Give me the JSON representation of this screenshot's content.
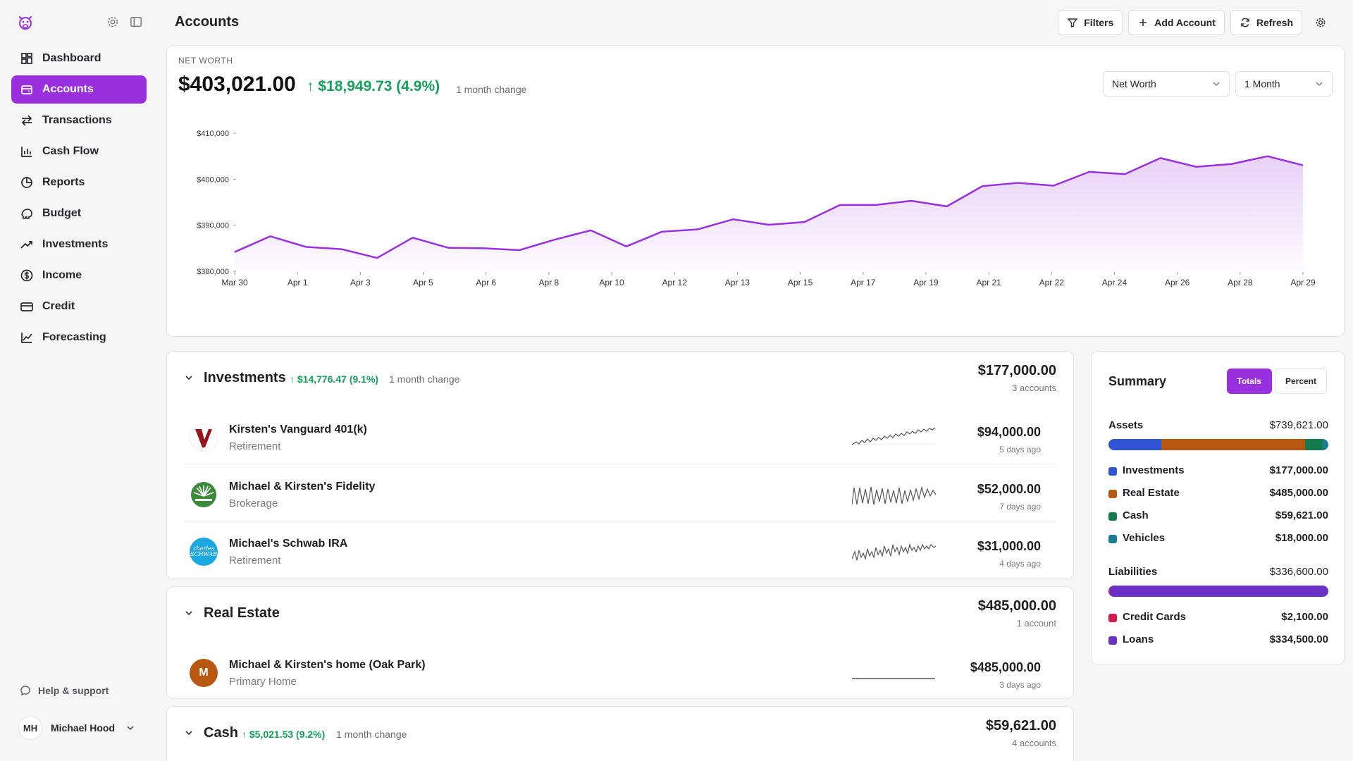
{
  "sidebar": {
    "items": [
      {
        "label": "Dashboard",
        "icon": "dashboard-icon",
        "active": false
      },
      {
        "label": "Accounts",
        "icon": "accounts-icon",
        "active": true
      },
      {
        "label": "Transactions",
        "icon": "transactions-icon",
        "active": false
      },
      {
        "label": "Cash Flow",
        "icon": "cash-flow-icon",
        "active": false
      },
      {
        "label": "Reports",
        "icon": "reports-icon",
        "active": false
      },
      {
        "label": "Budget",
        "icon": "budget-icon",
        "active": false
      },
      {
        "label": "Investments",
        "icon": "investments-icon",
        "active": false
      },
      {
        "label": "Income",
        "icon": "income-icon",
        "active": false
      },
      {
        "label": "Credit",
        "icon": "credit-icon",
        "active": false
      },
      {
        "label": "Forecasting",
        "icon": "forecasting-icon",
        "active": false
      }
    ],
    "help_label": "Help & support",
    "user": {
      "initials": "MH",
      "name": "Michael Hood"
    }
  },
  "header": {
    "title": "Accounts",
    "buttons": {
      "filters": "Filters",
      "add_account": "Add Account",
      "refresh": "Refresh"
    }
  },
  "net_worth": {
    "label": "NET WORTH",
    "value": "$403,021.00",
    "change": "↑ $18,949.73 (4.9%)",
    "change_note": "1 month change",
    "metric_select": "Net Worth",
    "period_select": "1 Month"
  },
  "chart_data": {
    "type": "area",
    "title": "",
    "xlabel": "",
    "ylabel": "",
    "ylim": [
      380000,
      410000
    ],
    "y_ticks": [
      380000,
      390000,
      400000,
      410000
    ],
    "y_tick_labels": [
      "$380,000",
      "$390,000",
      "$400,000",
      "$410,000"
    ],
    "x_tick_labels": [
      "Mar 30",
      "Apr 1",
      "Apr 3",
      "Apr 5",
      "Apr 6",
      "Apr 8",
      "Apr 10",
      "Apr 12",
      "Apr 13",
      "Apr 15",
      "Apr 17",
      "Apr 19",
      "Apr 21",
      "Apr 22",
      "Apr 24",
      "Apr 26",
      "Apr 28",
      "Apr 29"
    ],
    "line_color": "#9a2fe0",
    "grid": false,
    "values": [
      384200,
      387600,
      385300,
      384800,
      382900,
      387300,
      385100,
      385000,
      384600,
      386900,
      388900,
      385400,
      388600,
      389100,
      391300,
      390100,
      390700,
      394400,
      394400,
      395300,
      394100,
      398500,
      399200,
      398600,
      401600,
      401100,
      404600,
      402700,
      403300,
      405000,
      403021
    ]
  },
  "sections": {
    "investments": {
      "title": "Investments",
      "change": "↑ $14,776.47 (9.1%)",
      "change_note": "1 month change",
      "total": "$177,000.00",
      "count": "3 accounts",
      "accounts": [
        {
          "name": "Kirsten's Vanguard 401(k)",
          "type": "Retirement",
          "value": "$94,000.00",
          "updated": "5 days ago",
          "logo": "vanguard-logo"
        },
        {
          "name": "Michael & Kirsten's Fidelity",
          "type": "Brokerage",
          "value": "$52,000.00",
          "updated": "7 days ago",
          "logo": "fidelity-logo"
        },
        {
          "name": "Michael's Schwab IRA",
          "type": "Retirement",
          "value": "$31,000.00",
          "updated": "4 days ago",
          "logo": "schwab-logo",
          "logo_text": "charles SCHWAB"
        }
      ]
    },
    "real_estate": {
      "title": "Real Estate",
      "total": "$485,000.00",
      "count": "1 account",
      "accounts": [
        {
          "name": "Michael & Kirsten's home (Oak Park)",
          "type": "Primary Home",
          "value": "$485,000.00",
          "updated": "3 days ago",
          "logo_letter": "M"
        }
      ]
    },
    "cash": {
      "title": "Cash",
      "change": "↑ $5,021.53 (9.2%)",
      "change_note": "1 month change",
      "total": "$59,621.00",
      "count": "4 accounts"
    }
  },
  "summary": {
    "title": "Summary",
    "toggle": {
      "totals": "Totals",
      "percent": "Percent",
      "selected": "Totals"
    },
    "assets": {
      "label": "Assets",
      "total": "$739,621.00",
      "items": [
        {
          "label": "Investments",
          "value": "$177,000.00",
          "amount": 177000,
          "color": "#2f55d4"
        },
        {
          "label": "Real Estate",
          "value": "$485,000.00",
          "amount": 485000,
          "color": "#b8570f"
        },
        {
          "label": "Cash",
          "value": "$59,621.00",
          "amount": 59621,
          "color": "#157a4e"
        },
        {
          "label": "Vehicles",
          "value": "$18,000.00",
          "amount": 18000,
          "color": "#177f95"
        }
      ]
    },
    "liabilities": {
      "label": "Liabilities",
      "total": "$336,600.00",
      "items": [
        {
          "label": "Credit Cards",
          "value": "$2,100.00",
          "amount": 2100,
          "color": "#d11b4d"
        },
        {
          "label": "Loans",
          "value": "$334,500.00",
          "amount": 334500,
          "color": "#6a2fc4"
        }
      ]
    }
  }
}
